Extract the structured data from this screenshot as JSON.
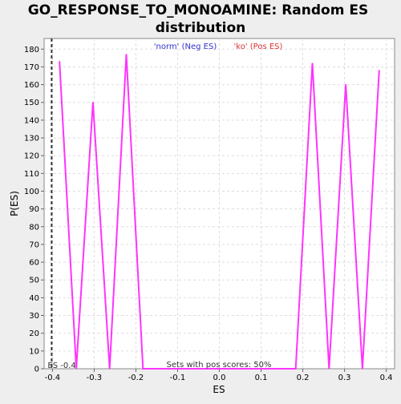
{
  "chart_data": {
    "type": "line",
    "title_line1": "GO_RESPONSE_TO_MONOAMINE: Random ES",
    "title_line2": "distribution",
    "xlabel": "ES",
    "ylabel": "P(ES)",
    "xlim": [
      -0.42,
      0.42
    ],
    "ylim": [
      0,
      186
    ],
    "xticks": [
      -0.4,
      -0.3,
      -0.2,
      -0.1,
      0.0,
      0.1,
      0.2,
      0.3,
      0.4
    ],
    "xtick_labels": [
      "-0.4",
      "-0.3",
      "-0.2",
      "-0.1",
      "0.0",
      "0.1",
      "0.2",
      "0.3",
      "0.4"
    ],
    "yticks": [
      0,
      10,
      20,
      30,
      40,
      50,
      60,
      70,
      80,
      90,
      100,
      110,
      120,
      130,
      140,
      150,
      160,
      170,
      180
    ],
    "grid": true,
    "legend": [
      {
        "label": "'norm' (Neg ES)",
        "color": "#3333cc"
      },
      {
        "label": "'ko' (Pos ES)",
        "color": "#dd3333"
      }
    ],
    "series": [
      {
        "color": "#ff33ff",
        "x": [
          -0.383,
          -0.343,
          -0.303,
          -0.263,
          -0.223,
          -0.183,
          0.183,
          0.223,
          0.263,
          0.303,
          0.343,
          0.383
        ],
        "y": [
          173,
          0,
          150,
          0,
          177,
          0,
          0,
          172,
          0,
          160,
          0,
          168
        ]
      }
    ],
    "es_marker": {
      "x": -0.4,
      "label": "ES -0.4"
    },
    "annotation": "Sets with pos scores: 50%"
  }
}
